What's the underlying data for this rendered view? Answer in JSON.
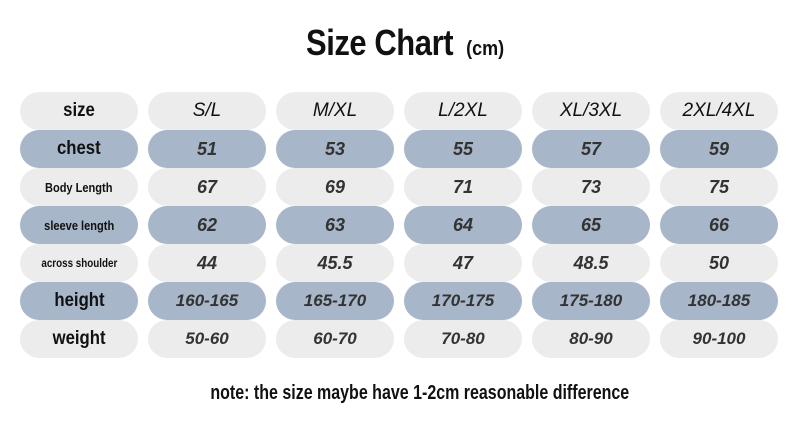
{
  "title": "Size Chart",
  "unit": "(cm)",
  "header": {
    "label": "size",
    "sizes": [
      "S/L",
      "M/XL",
      "L/2XL",
      "XL/3XL",
      "2XL/4XL"
    ]
  },
  "rows": [
    {
      "label": "chest",
      "values": [
        "51",
        "53",
        "55",
        "57",
        "59"
      ]
    },
    {
      "label": "Body Length",
      "values": [
        "67",
        "69",
        "71",
        "73",
        "75"
      ]
    },
    {
      "label": "sleeve length",
      "values": [
        "62",
        "63",
        "64",
        "65",
        "66"
      ]
    },
    {
      "label": "across shoulder",
      "values": [
        "44",
        "45.5",
        "47",
        "48.5",
        "50"
      ]
    },
    {
      "label": "height",
      "values": [
        "160-165",
        "165-170",
        "170-175",
        "175-180",
        "180-185"
      ]
    },
    {
      "label": "weight",
      "values": [
        "50-60",
        "60-70",
        "70-80",
        "80-90",
        "90-100"
      ]
    }
  ],
  "note": "note: the size maybe have 1-2cm reasonable difference",
  "colors": {
    "band": "#a7b6c8",
    "plain": "#ececec"
  }
}
